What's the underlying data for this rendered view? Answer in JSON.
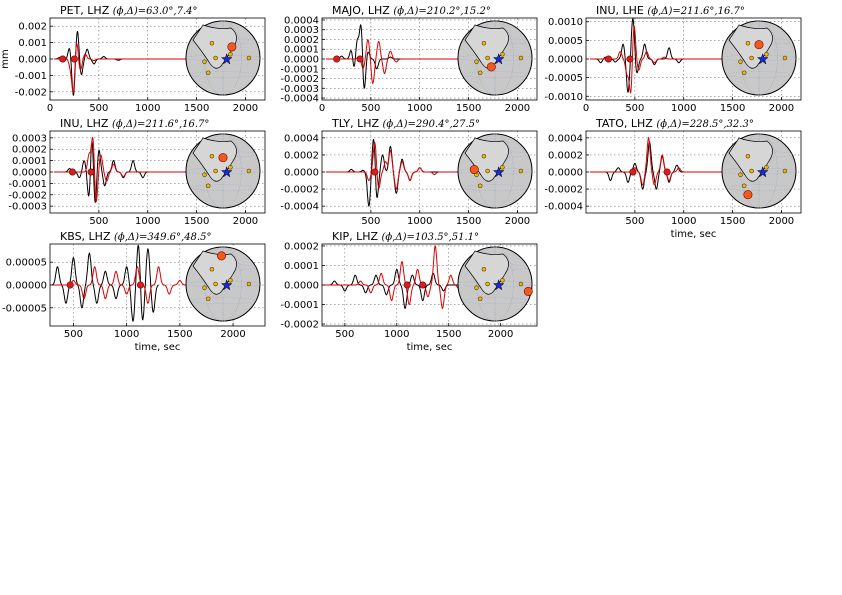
{
  "chart_data": [
    {
      "type": "line",
      "station": "PET",
      "component": "LHZ",
      "azimuth": "63.0",
      "distance": "7.4",
      "xlim": [
        0,
        2200
      ],
      "xticks": [
        0,
        500,
        1000,
        1500,
        2000
      ],
      "ylim": [
        -0.0025,
        0.0025
      ],
      "yticks": [
        "0.002",
        "0.001",
        "0.000",
        "-0.001",
        "-0.002"
      ],
      "ytickvals": [
        0.002,
        0.001,
        0,
        -0.001,
        -0.002
      ],
      "ylabel": "mm",
      "xlabel": "",
      "series": [
        {
          "color": "#000000",
          "t0": 40,
          "t1": 1600,
          "peaks": [
            [
              100,
              0.0001
            ],
            [
              150,
              -0.0001
            ],
            [
              200,
              0.0007
            ],
            [
              240,
              -0.0023
            ],
            [
              280,
              0.0018
            ],
            [
              320,
              -0.001
            ],
            [
              380,
              0.0006
            ],
            [
              450,
              -0.0003
            ],
            [
              550,
              0.00015
            ],
            [
              700,
              -8e-05
            ]
          ]
        },
        {
          "color": "#e00000",
          "t0": 40,
          "t1": 2150,
          "peaks": [
            [
              150,
              0.0001
            ],
            [
              210,
              -0.0005
            ],
            [
              240,
              -0.0021
            ],
            [
              270,
              0.0012
            ],
            [
              310,
              -0.0007
            ],
            [
              360,
              0.0003
            ],
            [
              450,
              -0.0001
            ]
          ]
        }
      ],
      "picks": [
        130,
        250
      ],
      "globe": {
        "src": [
          0.55,
          0.68
        ],
        "sta": [
          0.62,
          0.35
        ]
      }
    },
    {
      "type": "line",
      "station": "MAJO",
      "component": "LHZ",
      "azimuth": "210.2",
      "distance": "15.2",
      "xlim": [
        0,
        2200
      ],
      "xticks": [
        0,
        500,
        1000,
        1500,
        2000
      ],
      "ylim": [
        -0.00042,
        0.00042
      ],
      "yticks": [
        "0.0004",
        "0.0003",
        "0.0002",
        "0.0001",
        "0.0000",
        "-0.0001",
        "-0.0002",
        "-0.0003",
        "-0.0004"
      ],
      "ytickvals": [
        0.0004,
        0.0003,
        0.0002,
        0.0001,
        0,
        -0.0001,
        -0.0002,
        -0.0003,
        -0.0004
      ],
      "ylabel": "",
      "xlabel": "",
      "series": [
        {
          "color": "#000000",
          "t0": 40,
          "t1": 2150,
          "peaks": [
            [
              200,
              3e-05
            ],
            [
              300,
              0.0001
            ],
            [
              330,
              -0.00012
            ],
            [
              360,
              0.0002
            ],
            [
              400,
              0.00038
            ],
            [
              430,
              -0.00035
            ],
            [
              470,
              8e-05
            ],
            [
              560,
              -0.0001
            ],
            [
              700,
              2e-05
            ]
          ]
        },
        {
          "color": "#e00000",
          "t0": 40,
          "t1": 2150,
          "peaks": [
            [
              380,
              3e-05
            ],
            [
              420,
              -0.0001
            ],
            [
              470,
              0.0002
            ],
            [
              520,
              -0.00025
            ],
            [
              580,
              0.00018
            ],
            [
              640,
              -0.00015
            ],
            [
              700,
              8e-05
            ],
            [
              760,
              -3e-05
            ]
          ]
        }
      ],
      "picks": [
        150,
        390
      ],
      "globe": {
        "src": [
          0.55,
          0.68
        ],
        "sta": [
          0.45,
          0.62
        ]
      }
    },
    {
      "type": "line",
      "station": "INU",
      "component": "LHE",
      "azimuth": "211.6",
      "distance": "16.7",
      "xlim": [
        0,
        2200
      ],
      "xticks": [
        0,
        500,
        1000,
        1500,
        2000
      ],
      "ylim": [
        -0.0011,
        0.0011
      ],
      "yticks": [
        "0.0010",
        "0.0005",
        "0.0000",
        "-0.0005",
        "-0.0010"
      ],
      "ytickvals": [
        0.001,
        0.0005,
        0,
        -0.0005,
        -0.001
      ],
      "ylabel": "",
      "xlabel": "",
      "series": [
        {
          "color": "#000000",
          "t0": 40,
          "t1": 2150,
          "peaks": [
            [
              150,
              -0.0001
            ],
            [
              200,
              5e-05
            ],
            [
              300,
              -8e-05
            ],
            [
              380,
              0.0004
            ],
            [
              430,
              -0.0009
            ],
            [
              480,
              0.0011
            ],
            [
              520,
              -0.0004
            ],
            [
              600,
              0.0004
            ],
            [
              700,
              -0.00015
            ],
            [
              850,
              0.0003
            ],
            [
              950,
              -0.0001
            ]
          ]
        },
        {
          "color": "#e00000",
          "t0": 40,
          "t1": 2150,
          "peaks": [
            [
              350,
              0.0002
            ],
            [
              420,
              -0.0004
            ],
            [
              460,
              -0.001
            ],
            [
              490,
              0.001
            ],
            [
              540,
              -0.0003
            ],
            [
              620,
              0.0002
            ],
            [
              700,
              -0.0001
            ],
            [
              800,
              5e-05
            ]
          ]
        }
      ],
      "picks": [
        230,
        450
      ],
      "globe": {
        "src": [
          0.55,
          0.68
        ],
        "sta": [
          0.5,
          0.32
        ]
      }
    },
    {
      "type": "line",
      "station": "INU",
      "component": "LHZ",
      "azimuth": "211.6",
      "distance": "16.7",
      "xlim": [
        0,
        2200
      ],
      "xticks": [
        500,
        1000,
        1500,
        2000
      ],
      "ylim": [
        -0.00036,
        0.00036
      ],
      "yticks": [
        "0.0003",
        "0.0002",
        "0.0001",
        "0.0000",
        "-0.0001",
        "-0.0002",
        "-0.0003"
      ],
      "ytickvals": [
        0.0003,
        0.0002,
        0.0001,
        0,
        -0.0001,
        -0.0002,
        -0.0003
      ],
      "ylabel": "",
      "xlabel": "",
      "series": [
        {
          "color": "#000000",
          "t0": 40,
          "t1": 2150,
          "peaks": [
            [
              200,
              3e-05
            ],
            [
              300,
              -5e-05
            ],
            [
              350,
              0.0001
            ],
            [
              400,
              -0.00025
            ],
            [
              430,
              0.00035
            ],
            [
              460,
              -0.00032
            ],
            [
              500,
              0.0002
            ],
            [
              560,
              -0.00012
            ],
            [
              650,
              0.0001
            ],
            [
              750,
              -5e-05
            ],
            [
              850,
              0.0001
            ],
            [
              950,
              -5e-05
            ]
          ]
        },
        {
          "color": "#e00000",
          "t0": 40,
          "t1": 2150,
          "peaks": [
            [
              400,
              0.00015
            ],
            [
              440,
              0.00033
            ],
            [
              470,
              -0.0003
            ],
            [
              520,
              0.00015
            ],
            [
              580,
              -8e-05
            ],
            [
              650,
              7e-05
            ],
            [
              750,
              -4e-05
            ]
          ]
        }
      ],
      "picks": [
        230,
        420
      ],
      "globe": {
        "src": [
          0.55,
          0.68
        ],
        "sta": [
          0.5,
          0.32
        ]
      }
    },
    {
      "type": "line",
      "station": "TLY",
      "component": "LHZ",
      "azimuth": "290.4",
      "distance": "27.5",
      "xlim": [
        0,
        2200
      ],
      "xticks": [
        500,
        1000,
        1500,
        2000
      ],
      "ylim": [
        -0.00048,
        0.00048
      ],
      "yticks": [
        "0.0004",
        "0.0002",
        "0.0000",
        "-0.0002",
        "-0.0004"
      ],
      "ytickvals": [
        0.0004,
        0.0002,
        0,
        -0.0002,
        -0.0004
      ],
      "ylabel": "",
      "xlabel": "",
      "series": [
        {
          "color": "#000000",
          "t0": 40,
          "t1": 1600,
          "peaks": [
            [
              300,
              3e-05
            ],
            [
              420,
              2e-05
            ],
            [
              480,
              -0.0004
            ],
            [
              530,
              0.00043
            ],
            [
              560,
              -0.00035
            ],
            [
              620,
              0.0002
            ],
            [
              700,
              0.0003
            ],
            [
              760,
              -0.00025
            ],
            [
              820,
              0.00015
            ],
            [
              900,
              -0.0001
            ],
            [
              1000,
              5e-05
            ]
          ]
        },
        {
          "color": "#e00000",
          "t0": 40,
          "t1": 2150,
          "peaks": [
            [
              480,
              -0.0001
            ],
            [
              540,
              0.00035
            ],
            [
              580,
              -0.0002
            ],
            [
              650,
              0.00012
            ],
            [
              700,
              0.00025
            ],
            [
              760,
              -0.0002
            ],
            [
              820,
              0.00012
            ],
            [
              900,
              -0.0001
            ],
            [
              1000,
              5e-05
            ],
            [
              1150,
              -3e-05
            ]
          ]
        }
      ],
      "picks": [
        540,
        0
      ],
      "globe": {
        "src": [
          0.55,
          0.68
        ],
        "sta": [
          0.22,
          0.48
        ]
      }
    },
    {
      "type": "line",
      "station": "TATO",
      "component": "LHZ",
      "azimuth": "228.5",
      "distance": "32.3",
      "xlim": [
        0,
        2200
      ],
      "xticks": [
        500,
        1000,
        1500,
        2000
      ],
      "ylim": [
        -0.00048,
        0.00048
      ],
      "yticks": [
        "0.0004",
        "0.0002",
        "0.0000",
        "-0.0002",
        "-0.0004"
      ],
      "ytickvals": [
        0.0004,
        0.0002,
        0,
        -0.0002,
        -0.0004
      ],
      "ylabel": "",
      "xlabel": "time, sec",
      "series": [
        {
          "color": "#000000",
          "t0": 40,
          "t1": 1600,
          "peaks": [
            [
              250,
              -0.0001
            ],
            [
              330,
              5e-05
            ],
            [
              430,
              -0.00012
            ],
            [
              500,
              0.0001
            ],
            [
              580,
              -0.0002
            ],
            [
              650,
              0.00035
            ],
            [
              720,
              -0.0002
            ],
            [
              780,
              0.00018
            ],
            [
              850,
              -0.00012
            ],
            [
              930,
              8e-05
            ]
          ]
        },
        {
          "color": "#e00000",
          "t0": 40,
          "t1": 2150,
          "peaks": [
            [
              500,
              5e-05
            ],
            [
              580,
              -0.00015
            ],
            [
              640,
              0.0004
            ],
            [
              700,
              -0.00015
            ],
            [
              780,
              0.0002
            ],
            [
              850,
              -0.0001
            ],
            [
              950,
              5e-05
            ]
          ]
        }
      ],
      "picks": [
        480,
        830
      ],
      "globe": {
        "src": [
          0.55,
          0.68
        ],
        "sta": [
          0.35,
          0.82
        ]
      }
    },
    {
      "type": "line",
      "station": "KBS",
      "component": "LHZ",
      "azimuth": "349.6",
      "distance": "48.5",
      "xlim": [
        280,
        2300
      ],
      "xticks": [
        500,
        1000,
        1500,
        2000
      ],
      "ylim": [
        -9e-05,
        9e-05
      ],
      "yticks": [
        "0.00005",
        "0.00000",
        "-0.00005"
      ],
      "ytickvals": [
        5e-05,
        0,
        -5e-05
      ],
      "ylabel": "",
      "xlabel": "time, sec",
      "series": [
        {
          "color": "#000000",
          "t0": 300,
          "t1": 1300,
          "peaks": [
            [
              350,
              4e-05
            ],
            [
              430,
              -4e-05
            ],
            [
              500,
              6e-05
            ],
            [
              580,
              -5e-05
            ],
            [
              650,
              7e-05
            ],
            [
              720,
              -4e-05
            ],
            [
              800,
              3e-05
            ],
            [
              900,
              -3e-05
            ],
            [
              1000,
              4e-05
            ],
            [
              1060,
              -8e-05
            ],
            [
              1110,
              9e-05
            ],
            [
              1150,
              -8e-05
            ],
            [
              1200,
              8e-05
            ],
            [
              1250,
              -6e-05
            ]
          ]
        },
        {
          "color": "#e00000",
          "t0": 300,
          "t1": 2250,
          "peaks": [
            [
              500,
              1e-05
            ],
            [
              600,
              -3e-05
            ],
            [
              700,
              4e-05
            ],
            [
              800,
              -3e-05
            ],
            [
              900,
              3e-05
            ],
            [
              1000,
              -2e-05
            ],
            [
              1100,
              4e-05
            ],
            [
              1200,
              -4e-05
            ],
            [
              1300,
              4e-05
            ],
            [
              1400,
              -2e-05
            ],
            [
              1500,
              1e-05
            ]
          ]
        }
      ],
      "picks": [
        470,
        1130
      ],
      "globe": {
        "src": [
          0.55,
          0.68
        ],
        "sta": [
          0.48,
          0.12
        ]
      }
    },
    {
      "type": "line",
      "station": "KIP",
      "component": "LHZ",
      "azimuth": "103.5",
      "distance": "51.1",
      "xlim": [
        280,
        2350
      ],
      "xticks": [
        500,
        1000,
        1500,
        2000
      ],
      "ylim": [
        -0.00021,
        0.00021
      ],
      "yticks": [
        "0.0002",
        "0.0001",
        "0.0000",
        "-0.0001",
        "-0.0002"
      ],
      "ytickvals": [
        0.0002,
        0.0001,
        0,
        -0.0001,
        -0.0002
      ],
      "ylabel": "",
      "xlabel": "time, sec",
      "series": [
        {
          "color": "#000000",
          "t0": 300,
          "t1": 1600,
          "peaks": [
            [
              400,
              2e-05
            ],
            [
              500,
              -3e-05
            ],
            [
              600,
              5e-05
            ],
            [
              700,
              -4e-05
            ],
            [
              800,
              5e-05
            ],
            [
              900,
              -5e-05
            ],
            [
              1000,
              8e-05
            ],
            [
              1080,
              -0.00012
            ],
            [
              1150,
              5e-05
            ],
            [
              1250,
              -8e-05
            ],
            [
              1350,
              6e-05
            ],
            [
              1450,
              -3e-05
            ]
          ]
        },
        {
          "color": "#e00000",
          "t0": 300,
          "t1": 2300,
          "peaks": [
            [
              650,
              2e-05
            ],
            [
              750,
              -4e-05
            ],
            [
              850,
              6e-05
            ],
            [
              950,
              -8e-05
            ],
            [
              1050,
              0.00012
            ],
            [
              1120,
              -0.0001
            ],
            [
              1200,
              8e-05
            ],
            [
              1300,
              -6e-05
            ],
            [
              1370,
              0.0002
            ],
            [
              1440,
              -0.00012
            ],
            [
              1520,
              5e-05
            ],
            [
              1600,
              -2e-05
            ]
          ]
        }
      ],
      "picks": [
        1100,
        1250
      ],
      "globe": {
        "src": [
          0.55,
          0.68
        ],
        "sta": [
          0.95,
          0.6
        ]
      }
    }
  ]
}
